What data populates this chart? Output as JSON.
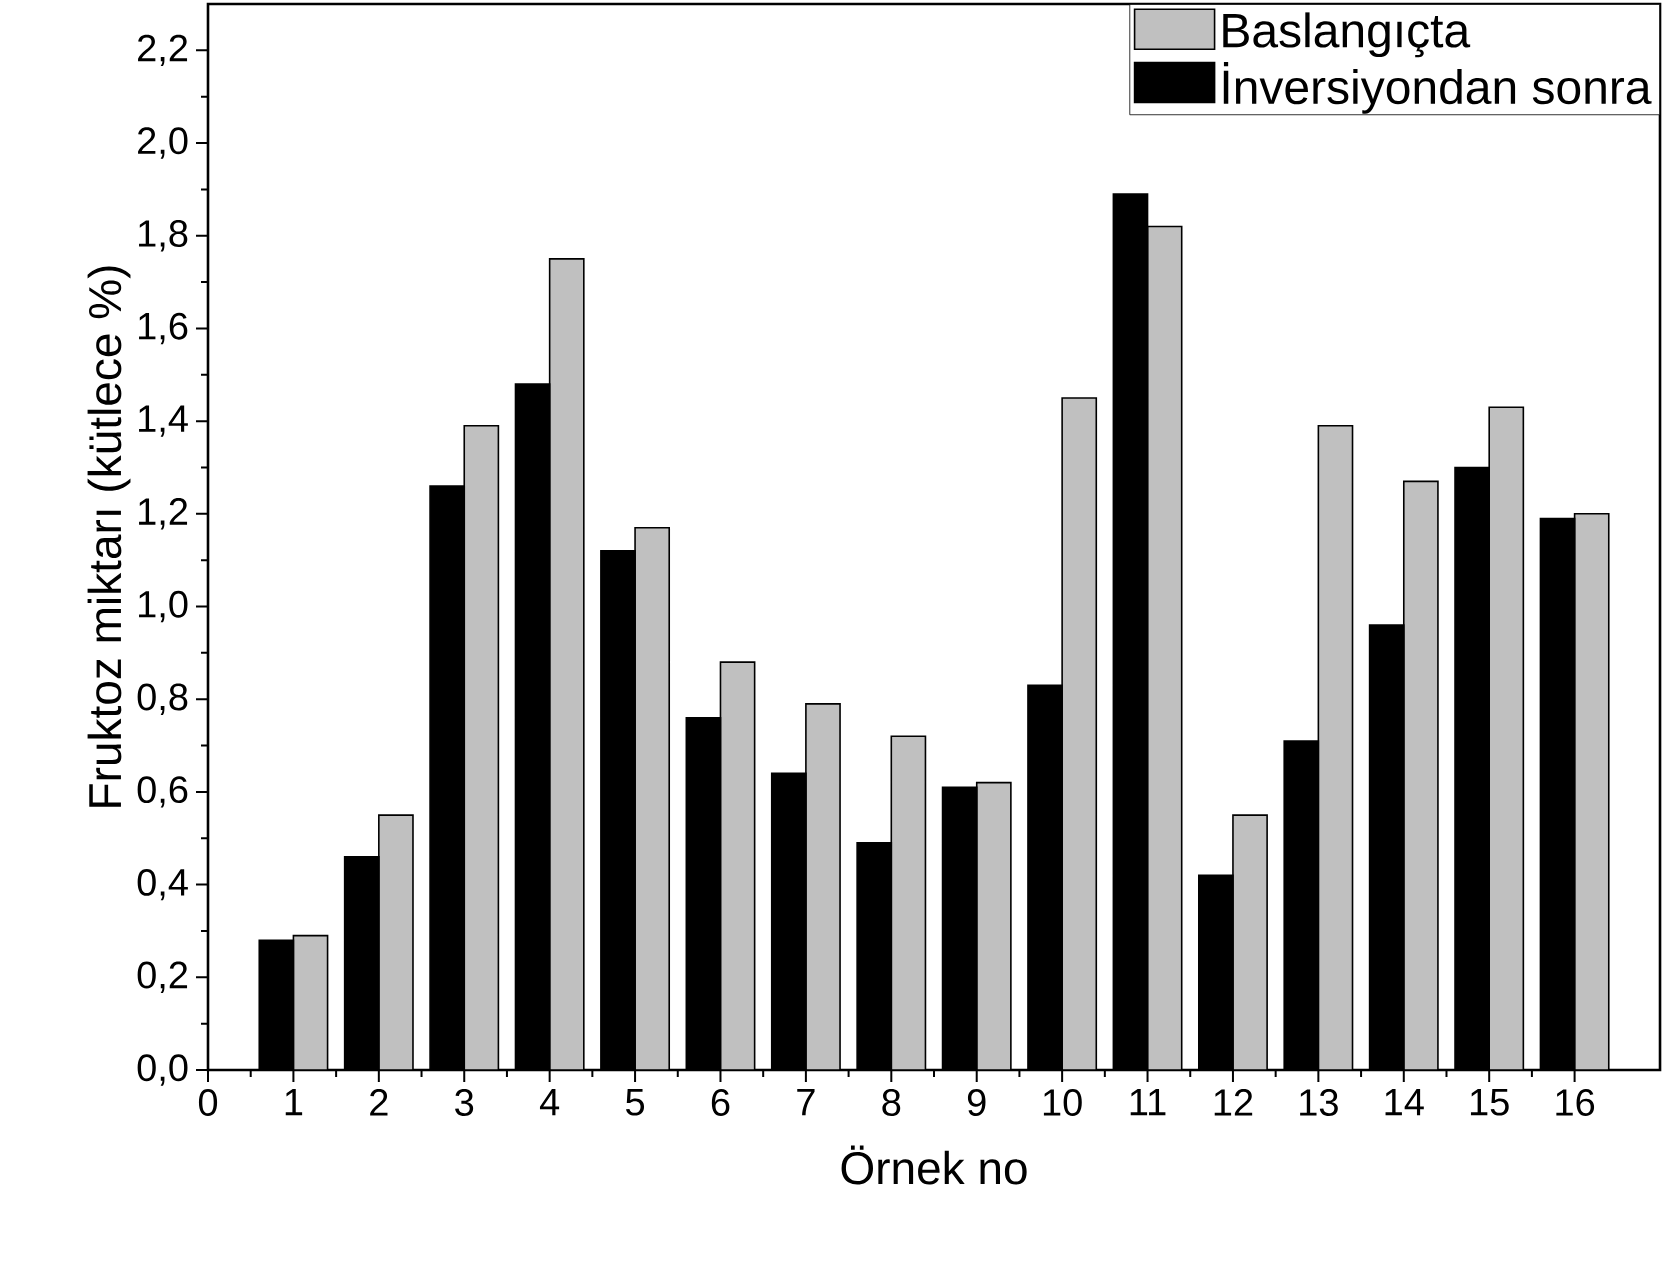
{
  "chart_data": {
    "type": "bar",
    "xlabel": "Örnek no",
    "ylabel": "Fruktoz miktarı (kütlece %)",
    "x": [
      1,
      2,
      3,
      4,
      5,
      6,
      7,
      8,
      9,
      10,
      11,
      12,
      13,
      14,
      15,
      16
    ],
    "series": [
      {
        "name": "Baslangıçta",
        "color": "#c0c0c0",
        "values": [
          0.29,
          0.55,
          1.39,
          1.75,
          1.17,
          0.88,
          0.79,
          0.72,
          0.62,
          1.45,
          1.82,
          0.55,
          1.39,
          1.27,
          1.43,
          1.2
        ]
      },
      {
        "name": "İnversiyondan sonra",
        "color": "#000000",
        "values": [
          0.28,
          0.46,
          1.26,
          1.48,
          1.12,
          0.76,
          0.64,
          0.49,
          0.61,
          0.83,
          1.89,
          0.42,
          0.71,
          0.96,
          1.3,
          1.19
        ]
      }
    ],
    "xlim": [
      0,
      17
    ],
    "xticks": [
      0,
      1,
      2,
      3,
      4,
      5,
      6,
      7,
      8,
      9,
      10,
      11,
      12,
      13,
      14,
      15,
      16
    ],
    "ylim": [
      0,
      2.3
    ],
    "yticks": [
      {
        "value": 0,
        "label": "0,0"
      },
      {
        "value": 0.2,
        "label": "0,2"
      },
      {
        "value": 0.4,
        "label": "0,4"
      },
      {
        "value": 0.6,
        "label": "0,6"
      },
      {
        "value": 0.8,
        "label": "0,8"
      },
      {
        "value": 1.0,
        "label": "1,0"
      },
      {
        "value": 1.2,
        "label": "1,2"
      },
      {
        "value": 1.4,
        "label": "1,4"
      },
      {
        "value": 1.6,
        "label": "1,6"
      },
      {
        "value": 1.8,
        "label": "1,8"
      },
      {
        "value": 2.0,
        "label": "2,0"
      },
      {
        "value": 2.2,
        "label": "2,2"
      }
    ],
    "grid": false,
    "legend": "top right"
  }
}
